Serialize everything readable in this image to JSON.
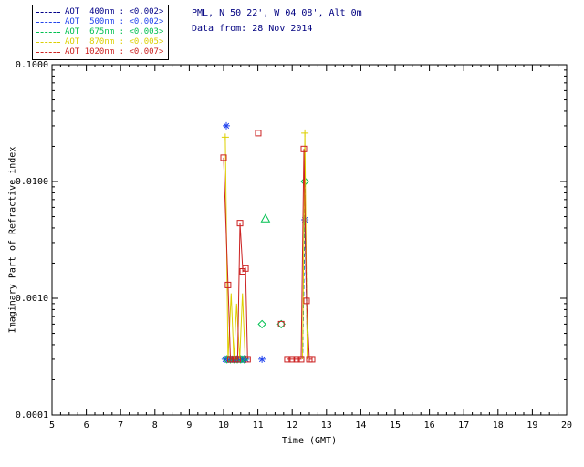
{
  "header": {
    "site_line": "PML, N 50 22', W 04 08', Alt 0m",
    "date_line": "Data from: 28 Nov 2014",
    "color": "#000080"
  },
  "legend": {
    "items": [
      {
        "label": "AOT  400nm : <0.002>",
        "color": "#000088"
      },
      {
        "label": "AOT  500nm : <0.002>",
        "color": "#2244ee"
      },
      {
        "label": "AOT  675nm : <0.003>",
        "color": "#00c050"
      },
      {
        "label": "AOT  870nm : <0.005>",
        "color": "#ddd000"
      },
      {
        "label": "AOT 1020nm : <0.007>",
        "color": "#cc2222"
      }
    ]
  },
  "chart_data": {
    "type": "line",
    "title": "",
    "xlabel": "Time (GMT)",
    "ylabel": "Imaginary Part of Refractive index",
    "x_range": [
      5,
      20
    ],
    "x_major_ticks": [
      5,
      6,
      7,
      8,
      9,
      10,
      11,
      12,
      13,
      14,
      15,
      16,
      17,
      18,
      19,
      20
    ],
    "x_minor_step": 0.25,
    "y_scale": "log",
    "y_range": [
      0.0001,
      0.1
    ],
    "y_major_ticks": [
      {
        "v": 0.0001,
        "label": "0.0001"
      },
      {
        "v": 0.001,
        "label": "0.0010"
      },
      {
        "v": 0.01,
        "label": "0.0100"
      },
      {
        "v": 0.1,
        "label": "0.1000"
      }
    ],
    "grid": false,
    "legend_position": "top-left",
    "series": [
      {
        "name": "AOT 400nm",
        "color": "#000088",
        "dash": "4,3",
        "marker": "none",
        "lines": [
          [
            [
              12.3,
              0.0003
            ],
            [
              12.37,
              0.0048
            ],
            [
              12.45,
              0.0003
            ]
          ]
        ],
        "points": []
      },
      {
        "name": "AOT 500nm",
        "color": "#2244ee",
        "dash": "4,3",
        "marker": "asterisk",
        "lines": [
          [
            [
              12.3,
              0.0003
            ],
            [
              12.37,
              0.0047
            ],
            [
              12.45,
              0.0003
            ]
          ]
        ],
        "points": [
          [
            10.08,
            0.03
          ],
          [
            10.05,
            0.0003
          ],
          [
            10.15,
            0.0003
          ],
          [
            10.25,
            0.0003
          ],
          [
            10.35,
            0.0003
          ],
          [
            10.45,
            0.0003
          ],
          [
            10.55,
            0.0003
          ],
          [
            10.65,
            0.0003
          ],
          [
            11.12,
            0.0003
          ],
          [
            12.37,
            0.0047
          ]
        ]
      },
      {
        "name": "AOT 675nm",
        "color": "#00c050",
        "dash": "4,3",
        "marker": "diamond",
        "lines": [
          [
            [
              12.3,
              0.0003
            ],
            [
              12.37,
              0.01
            ],
            [
              12.45,
              0.0003
            ]
          ]
        ],
        "points": [
          [
            10.1,
            0.0003
          ],
          [
            10.2,
            0.0003
          ],
          [
            10.3,
            0.0003
          ],
          [
            10.4,
            0.0003
          ],
          [
            10.5,
            0.0003
          ],
          [
            10.6,
            0.0003
          ],
          [
            11.12,
            0.0006
          ],
          [
            11.68,
            0.0006
          ],
          [
            12.37,
            0.01
          ],
          [
            11.22,
            0.0048,
            "triangle"
          ]
        ]
      },
      {
        "name": "AOT 870nm",
        "color": "#ddd000",
        "dash": "",
        "marker": "plus",
        "lines": [
          [
            [
              10.05,
              0.024
            ],
            [
              10.13,
              0.0003
            ],
            [
              10.22,
              0.0011
            ],
            [
              10.3,
              0.0003
            ],
            [
              10.38,
              0.0009
            ],
            [
              10.47,
              0.0003
            ],
            [
              10.55,
              0.0011
            ],
            [
              10.63,
              0.0003
            ]
          ],
          [
            [
              12.3,
              0.0003
            ],
            [
              12.37,
              0.026
            ],
            [
              12.44,
              0.0003
            ]
          ]
        ],
        "points": [
          [
            10.05,
            0.024
          ],
          [
            12.37,
            0.026
          ]
        ]
      },
      {
        "name": "AOT 1020nm",
        "color": "#cc2222",
        "dash": "",
        "marker": "square",
        "lines": [
          [
            [
              10.0,
              0.016
            ],
            [
              10.13,
              0.0013
            ],
            [
              10.2,
              0.0003
            ],
            [
              10.27,
              0.0003
            ],
            [
              10.34,
              0.0003
            ],
            [
              10.41,
              0.0003
            ],
            [
              10.48,
              0.0044
            ],
            [
              10.56,
              0.0017
            ],
            [
              10.64,
              0.0018
            ],
            [
              10.7,
              0.0003
            ]
          ],
          [
            [
              11.86,
              0.0003
            ],
            [
              11.99,
              0.0003
            ],
            [
              12.13,
              0.0003
            ],
            [
              12.26,
              0.0003
            ],
            [
              12.34,
              0.019
            ],
            [
              12.42,
              0.00095
            ],
            [
              12.5,
              0.0003
            ],
            [
              12.58,
              0.0003
            ]
          ]
        ],
        "points": [
          [
            10.0,
            0.016
          ],
          [
            10.13,
            0.0013
          ],
          [
            10.2,
            0.0003
          ],
          [
            10.27,
            0.0003
          ],
          [
            10.34,
            0.0003
          ],
          [
            10.41,
            0.0003
          ],
          [
            10.48,
            0.0044
          ],
          [
            10.56,
            0.0017
          ],
          [
            10.64,
            0.0018
          ],
          [
            10.7,
            0.0003
          ],
          [
            11.01,
            0.026
          ],
          [
            11.68,
            0.0006
          ],
          [
            11.86,
            0.0003
          ],
          [
            11.99,
            0.0003
          ],
          [
            12.13,
            0.0003
          ],
          [
            12.26,
            0.0003
          ],
          [
            12.34,
            0.019
          ],
          [
            12.42,
            0.00095
          ],
          [
            12.5,
            0.0003
          ],
          [
            12.58,
            0.0003
          ]
        ]
      }
    ]
  }
}
